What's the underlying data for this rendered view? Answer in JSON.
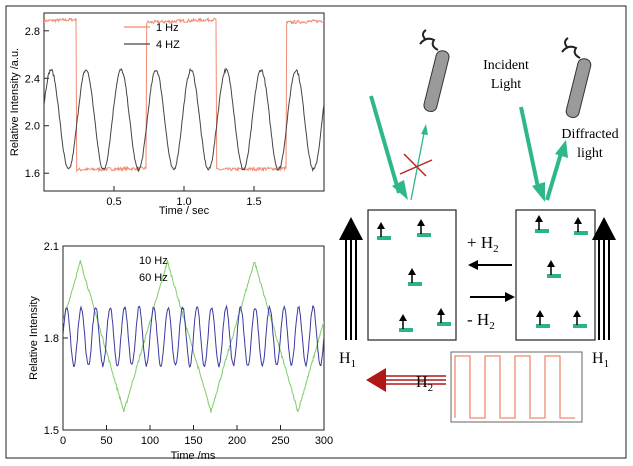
{
  "colors": {
    "red_trace": "#f08a72",
    "black_trace": "#444444",
    "green_trace": "#7fcc6a",
    "blue_trace": "#3a3aa0",
    "beam_green": "#2eb88a",
    "dipole_teal": "#2bb38a",
    "cross_red": "#c02020",
    "arrow_darkred": "#b01818",
    "square_wave": "#f08a72"
  },
  "chart_data": [
    {
      "type": "line",
      "xlabel": "Time / sec",
      "ylabel": "Relative Intensity /a.u.",
      "xlim": [
        0,
        2.0
      ],
      "ylim": [
        1.45,
        2.95
      ],
      "x_ticks": [
        {
          "value": 0.5,
          "label": "0.5"
        },
        {
          "value": 1.0,
          "label": "1.0"
        },
        {
          "value": 1.5,
          "label": "1.5"
        }
      ],
      "y_ticks": [
        {
          "value": 1.6,
          "label": "1.6"
        },
        {
          "value": 2.0,
          "label": "2.0"
        },
        {
          "value": 2.4,
          "label": "2.4"
        },
        {
          "value": 2.8,
          "label": "2.8"
        }
      ],
      "legend": "top-center",
      "series": [
        {
          "name": "1 Hz",
          "color": "#f08a72",
          "shape": "square",
          "frequency": 1.0,
          "phase": 0.27,
          "low": 1.6,
          "high": 2.87
        },
        {
          "name": "4 HZ",
          "color": "#444444",
          "shape": "smooth",
          "frequency": 4.0,
          "phase": 0.05,
          "low": 1.63,
          "high": 2.47
        }
      ]
    },
    {
      "type": "line",
      "xlabel": "Time /ms",
      "ylabel": "Relative Intensity",
      "xlim": [
        0,
        300
      ],
      "ylim": [
        1.5,
        2.1
      ],
      "x_ticks": [
        {
          "value": 0,
          "label": "0"
        },
        {
          "value": 50,
          "label": "50"
        },
        {
          "value": 100,
          "label": "100"
        },
        {
          "value": 150,
          "label": "150"
        },
        {
          "value": 200,
          "label": "200"
        },
        {
          "value": 250,
          "label": "250"
        },
        {
          "value": 300,
          "label": "300"
        }
      ],
      "y_ticks": [
        {
          "value": 1.5,
          "label": "1.5"
        },
        {
          "value": 1.8,
          "label": "1.8"
        },
        {
          "value": 2.1,
          "label": "2.1"
        }
      ],
      "legend": "top-left",
      "series": [
        {
          "name": "10 Hz",
          "color": "#7fcc6a",
          "shape": "triangle",
          "frequency": 10.0,
          "phase": 0.3,
          "low": 1.56,
          "high": 2.05
        },
        {
          "name": "60 Hz",
          "color": "#3a3aa0",
          "shape": "sine",
          "frequency": 60.0,
          "phase": 0.0,
          "low": 1.71,
          "high": 1.9
        }
      ]
    }
  ],
  "diagram": {
    "incident_light": [
      "Incident",
      "Light"
    ],
    "diffracted_light": [
      "Diffracted",
      "light"
    ],
    "plus_h2": "+ H",
    "minus_h2": "- H",
    "h1_left": "H",
    "h1_right": "H",
    "h2_bottom": "H",
    "sub_2": "2",
    "sub_1": "1"
  }
}
